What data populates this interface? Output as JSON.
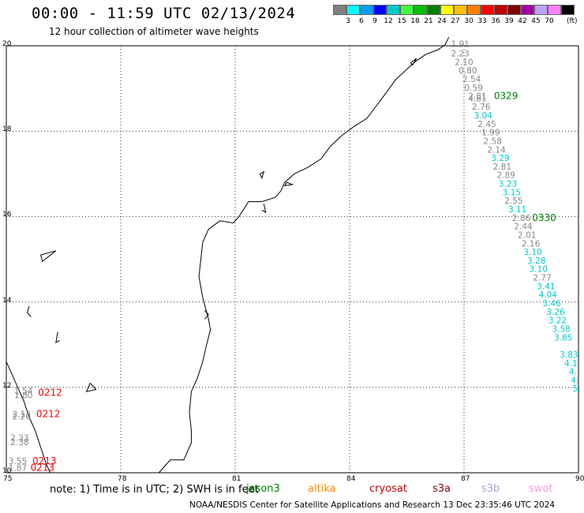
{
  "header": {
    "title": "00:00 - 11:59 UTC 02/13/2024",
    "subtitle": "12 hour collection of altimeter wave heights"
  },
  "colorbar": {
    "colors": [
      "#808080",
      "#00ffff",
      "#00a0ff",
      "#0000ff",
      "#00c8c8",
      "#40ff40",
      "#00c000",
      "#008000",
      "#ffff00",
      "#ffc000",
      "#ff8000",
      "#ff0000",
      "#c00000",
      "#800000",
      "#a000a0",
      "#c0a0ff",
      "#ff80ff",
      "#000000"
    ],
    "ticks": [
      "3",
      "6",
      "9",
      "12",
      "15",
      "18",
      "21",
      "24",
      "27",
      "30",
      "33",
      "36",
      "39",
      "42",
      "45",
      "70"
    ],
    "unit": "(ft)"
  },
  "map": {
    "lon_range": [
      75,
      90
    ],
    "lat_range": [
      10,
      20
    ],
    "x_ticks": [
      "75",
      "78",
      "81",
      "84",
      "87",
      "90"
    ],
    "y_ticks": [
      "20",
      "18",
      "16",
      "14",
      "12",
      "10"
    ],
    "grid": "dotted",
    "coastline_color": "#000000",
    "tracks": [
      {
        "points": [
          {
            "lon": 86.9,
            "lat": 19.97,
            "v": "1.91",
            "color": "#888888"
          },
          {
            "lon": 86.9,
            "lat": 19.75,
            "v": "2.23",
            "color": "#888888"
          },
          {
            "lon": 87.0,
            "lat": 19.55,
            "v": "2.10",
            "color": "#888888"
          },
          {
            "lon": 87.1,
            "lat": 19.35,
            "v": "0.80",
            "color": "#888888"
          },
          {
            "lon": 87.2,
            "lat": 19.15,
            "v": "2.54",
            "color": "#888888"
          },
          {
            "lon": 87.25,
            "lat": 18.95,
            "v": "0.59",
            "color": "#888888"
          },
          {
            "lon": 87.35,
            "lat": 18.75,
            "v": "2.81",
            "color": "#888888"
          },
          {
            "lon": 87.35,
            "lat": 18.7,
            "v": "4.81",
            "color": "#888888"
          },
          {
            "lon": 87.45,
            "lat": 18.5,
            "v": "2.76",
            "color": "#888888"
          },
          {
            "lon": 87.5,
            "lat": 18.3,
            "v": "3.04",
            "color": "#00cccc"
          },
          {
            "lon": 87.6,
            "lat": 18.1,
            "v": "2.45",
            "color": "#888888"
          },
          {
            "lon": 87.7,
            "lat": 17.9,
            "v": "1.99",
            "color": "#888888"
          },
          {
            "lon": 87.75,
            "lat": 17.7,
            "v": "2.58",
            "color": "#888888"
          },
          {
            "lon": 87.85,
            "lat": 17.5,
            "v": "2.14",
            "color": "#888888"
          },
          {
            "lon": 87.95,
            "lat": 17.3,
            "v": "3.29",
            "color": "#00cccc"
          },
          {
            "lon": 88.0,
            "lat": 17.1,
            "v": "2.81",
            "color": "#888888"
          },
          {
            "lon": 88.1,
            "lat": 16.9,
            "v": "2.89",
            "color": "#888888"
          },
          {
            "lon": 88.15,
            "lat": 16.7,
            "v": "3.23",
            "color": "#00cccc"
          },
          {
            "lon": 88.25,
            "lat": 16.5,
            "v": "3.15",
            "color": "#00cccc"
          },
          {
            "lon": 88.3,
            "lat": 16.3,
            "v": "2.55",
            "color": "#888888"
          },
          {
            "lon": 88.4,
            "lat": 16.1,
            "v": "3.11",
            "color": "#00cccc"
          },
          {
            "lon": 88.5,
            "lat": 15.9,
            "v": "2.86",
            "color": "#888888"
          },
          {
            "lon": 88.55,
            "lat": 15.7,
            "v": "2.44",
            "color": "#888888"
          },
          {
            "lon": 88.65,
            "lat": 15.5,
            "v": "2.01",
            "color": "#888888"
          },
          {
            "lon": 88.75,
            "lat": 15.3,
            "v": "2.16",
            "color": "#888888"
          },
          {
            "lon": 88.8,
            "lat": 15.1,
            "v": "3.10",
            "color": "#00cccc"
          },
          {
            "lon": 88.9,
            "lat": 14.9,
            "v": "3.28",
            "color": "#00cccc"
          },
          {
            "lon": 88.95,
            "lat": 14.7,
            "v": "3.10",
            "color": "#00cccc"
          },
          {
            "lon": 89.05,
            "lat": 14.5,
            "v": "2.77",
            "color": "#888888"
          },
          {
            "lon": 89.15,
            "lat": 14.3,
            "v": "3.41",
            "color": "#00cccc"
          },
          {
            "lon": 89.2,
            "lat": 14.1,
            "v": "4.04",
            "color": "#00cccc"
          },
          {
            "lon": 89.3,
            "lat": 13.9,
            "v": "3.46",
            "color": "#00cccc"
          },
          {
            "lon": 89.4,
            "lat": 13.7,
            "v": "3.26",
            "color": "#00cccc"
          },
          {
            "lon": 89.45,
            "lat": 13.5,
            "v": "3.22",
            "color": "#00cccc"
          },
          {
            "lon": 89.55,
            "lat": 13.3,
            "v": "3.58",
            "color": "#00cccc"
          },
          {
            "lon": 89.6,
            "lat": 13.1,
            "v": "3.85",
            "color": "#00cccc"
          },
          {
            "lon": 89.75,
            "lat": 12.7,
            "v": "3.83",
            "color": "#00cccc"
          },
          {
            "lon": 89.8,
            "lat": 12.5,
            "v": "4.1",
            "color": "#00cccc"
          },
          {
            "lon": 89.85,
            "lat": 12.3,
            "v": "4.",
            "color": "#00cccc"
          },
          {
            "lon": 89.9,
            "lat": 12.1,
            "v": "4.",
            "color": "#00cccc"
          },
          {
            "lon": 89.95,
            "lat": 11.9,
            "v": "5.",
            "color": "#00cccc"
          }
        ]
      },
      {
        "points": [
          {
            "lon": 75.45,
            "lat": 11.85,
            "v": "1.54",
            "color": "#888888"
          },
          {
            "lon": 75.45,
            "lat": 11.75,
            "v": "1.80",
            "color": "#888888"
          },
          {
            "lon": 75.4,
            "lat": 11.3,
            "v": "2.13",
            "color": "#888888"
          },
          {
            "lon": 75.4,
            "lat": 11.25,
            "v": "2.20",
            "color": "#888888"
          },
          {
            "lon": 75.35,
            "lat": 10.75,
            "v": "2.33",
            "color": "#888888"
          },
          {
            "lon": 75.35,
            "lat": 10.65,
            "v": "2.38",
            "color": "#888888"
          },
          {
            "lon": 75.3,
            "lat": 10.2,
            "v": "3.55",
            "color": "#888888"
          },
          {
            "lon": 75.3,
            "lat": 10.05,
            "v": "1.87",
            "color": "#888888"
          }
        ]
      }
    ],
    "time_labels": [
      {
        "text": "0329",
        "lon": 88.1,
        "lat": 18.75,
        "color": "#008000"
      },
      {
        "text": "0330",
        "lon": 89.1,
        "lat": 15.9,
        "color": "#008000"
      },
      {
        "text": "0212",
        "lon": 76.15,
        "lat": 11.8,
        "color": "#ff0000"
      },
      {
        "text": "0212",
        "lon": 76.1,
        "lat": 11.3,
        "color": "#ff0000"
      },
      {
        "text": "0213",
        "lon": 76.0,
        "lat": 10.2,
        "color": "#ff0000"
      },
      {
        "text": "0213",
        "lon": 75.95,
        "lat": 10.05,
        "color": "#ff0000"
      }
    ],
    "coast": [
      [
        [
          86.6,
          20.2
        ],
        [
          86.5,
          20.02
        ],
        [
          86.3,
          19.9
        ],
        [
          86.0,
          19.8
        ],
        [
          85.75,
          19.65
        ],
        [
          85.5,
          19.45
        ],
        [
          85.2,
          19.2
        ],
        [
          85.0,
          18.95
        ],
        [
          84.75,
          18.65
        ],
        [
          84.45,
          18.3
        ],
        [
          84.1,
          18.1
        ],
        [
          83.8,
          17.9
        ],
        [
          83.5,
          17.65
        ],
        [
          83.25,
          17.35
        ],
        [
          82.9,
          17.15
        ],
        [
          82.55,
          17.0
        ],
        [
          82.3,
          16.8
        ],
        [
          82.2,
          16.6
        ],
        [
          82.05,
          16.45
        ],
        [
          81.7,
          16.35
        ],
        [
          81.35,
          16.35
        ],
        [
          81.1,
          16.0
        ],
        [
          80.95,
          15.85
        ],
        [
          80.6,
          15.9
        ],
        [
          80.3,
          15.7
        ],
        [
          80.15,
          15.4
        ],
        [
          80.1,
          15.0
        ],
        [
          80.05,
          14.6
        ],
        [
          80.15,
          14.1
        ],
        [
          80.3,
          13.6
        ],
        [
          80.35,
          13.35
        ],
        [
          80.25,
          13.0
        ],
        [
          80.15,
          12.6
        ],
        [
          80.0,
          12.2
        ],
        [
          79.85,
          11.9
        ],
        [
          79.8,
          11.4
        ],
        [
          79.85,
          11.0
        ],
        [
          79.85,
          10.7
        ],
        [
          79.65,
          10.3
        ],
        [
          79.3,
          10.3
        ],
        [
          79.0,
          10.0
        ]
      ],
      [
        [
          75.0,
          12.6
        ],
        [
          75.15,
          12.3
        ],
        [
          75.3,
          12.0
        ],
        [
          75.45,
          11.7
        ],
        [
          75.6,
          11.3
        ],
        [
          75.75,
          11.0
        ],
        [
          75.9,
          10.6
        ],
        [
          76.05,
          10.2
        ],
        [
          76.15,
          10.0
        ]
      ]
    ],
    "islands": [
      [
        [
          81.65,
          17.0
        ],
        [
          81.75,
          17.05
        ],
        [
          81.7,
          16.9
        ],
        [
          81.65,
          17.0
        ]
      ],
      [
        [
          82.35,
          16.8
        ],
        [
          82.5,
          16.75
        ],
        [
          82.3,
          16.72
        ],
        [
          82.35,
          16.8
        ]
      ],
      [
        [
          81.75,
          16.3
        ],
        [
          81.8,
          16.1
        ],
        [
          81.7,
          16.15
        ]
      ],
      [
        [
          85.6,
          19.6
        ],
        [
          85.75,
          19.7
        ],
        [
          85.65,
          19.55
        ],
        [
          85.6,
          19.6
        ]
      ],
      [
        [
          80.2,
          13.8
        ],
        [
          80.3,
          13.7
        ],
        [
          80.2,
          13.6
        ]
      ],
      [
        [
          75.9,
          15.1
        ],
        [
          76.3,
          15.2
        ],
        [
          75.95,
          14.95
        ],
        [
          75.9,
          15.1
        ]
      ],
      [
        [
          75.6,
          13.9
        ],
        [
          75.55,
          13.75
        ],
        [
          75.65,
          13.65
        ]
      ],
      [
        [
          76.35,
          13.3
        ],
        [
          76.3,
          13.05
        ],
        [
          76.4,
          13.1
        ]
      ],
      [
        [
          77.2,
          12.1
        ],
        [
          77.35,
          11.95
        ],
        [
          77.1,
          11.9
        ],
        [
          77.2,
          12.1
        ]
      ]
    ]
  },
  "footer": {
    "note": "note: 1) Time is in UTC; 2) SWH is in feet",
    "satellites": [
      {
        "name": "jason3",
        "color": "#008000"
      },
      {
        "name": "altika",
        "color": "#ff8c00"
      },
      {
        "name": "cryosat",
        "color": "#cc0000"
      },
      {
        "name": "s3a",
        "color": "#8b0000"
      },
      {
        "name": "s3b",
        "color": "#b0a0e0"
      },
      {
        "name": "swot",
        "color": "#ff99dd"
      }
    ],
    "credit": "NOAA/NESDIS Center for Satellite Applications and Research    13 Dec 23:35:46 UTC 2024"
  }
}
